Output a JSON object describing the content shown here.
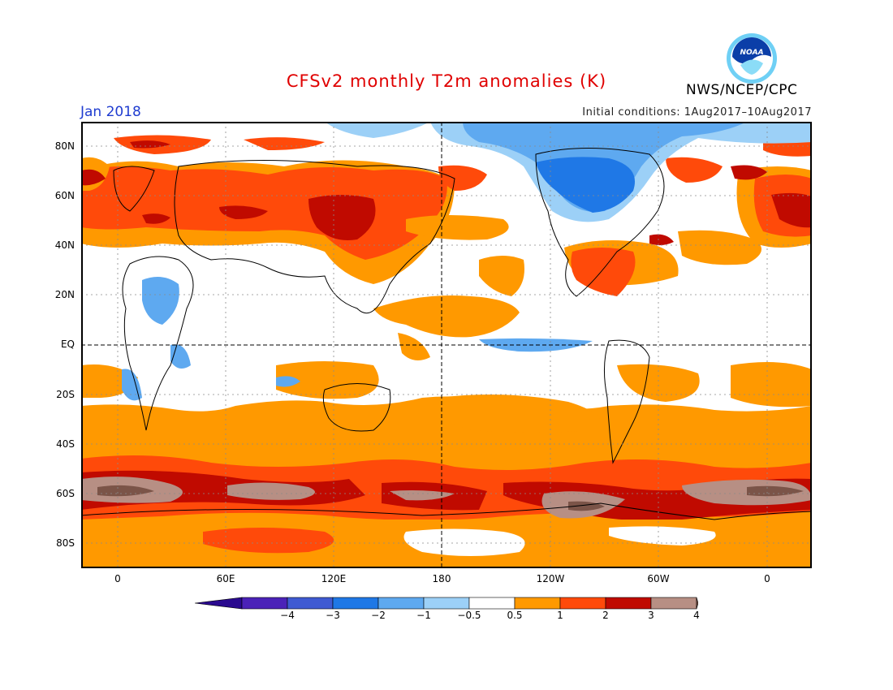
{
  "header": {
    "title": "CFSv2 monthly T2m anomalies (K)",
    "month": "Jan 2018",
    "initial_conditions": "Initial conditions: 1Aug2017–10Aug2017",
    "agency": "NWS/NCEP/CPC",
    "logo_text": "NOAA"
  },
  "map": {
    "lat_labels": [
      "80N",
      "60N",
      "40N",
      "20N",
      "EQ",
      "20S",
      "40S",
      "60S",
      "80S"
    ],
    "lon_labels": [
      "0",
      "60E",
      "120E",
      "180",
      "120W",
      "60W",
      "0"
    ]
  },
  "colorbar": {
    "labels": [
      "−4",
      "−3",
      "−2",
      "−1",
      "−0.5",
      "0.5",
      "1",
      "2",
      "3",
      "4"
    ],
    "colors": [
      "#4b22b8",
      "#3f5ad2",
      "#1f78e6",
      "#5ea9f0",
      "#9cd0f7",
      "#ffffff",
      "#ff9900",
      "#ff4a0a",
      "#c00a00",
      "#b78f84"
    ],
    "end_low": "#2a0a8f",
    "end_high": "#7b5448"
  },
  "palette": {
    "warm1": "#ff9900",
    "warm2": "#ff4a0a",
    "warm3": "#c00a00",
    "warm4": "#b78f84",
    "warm5": "#7b5448",
    "cool1": "#9cd0f7",
    "cool2": "#5ea9f0",
    "cool3": "#1f78e6"
  }
}
